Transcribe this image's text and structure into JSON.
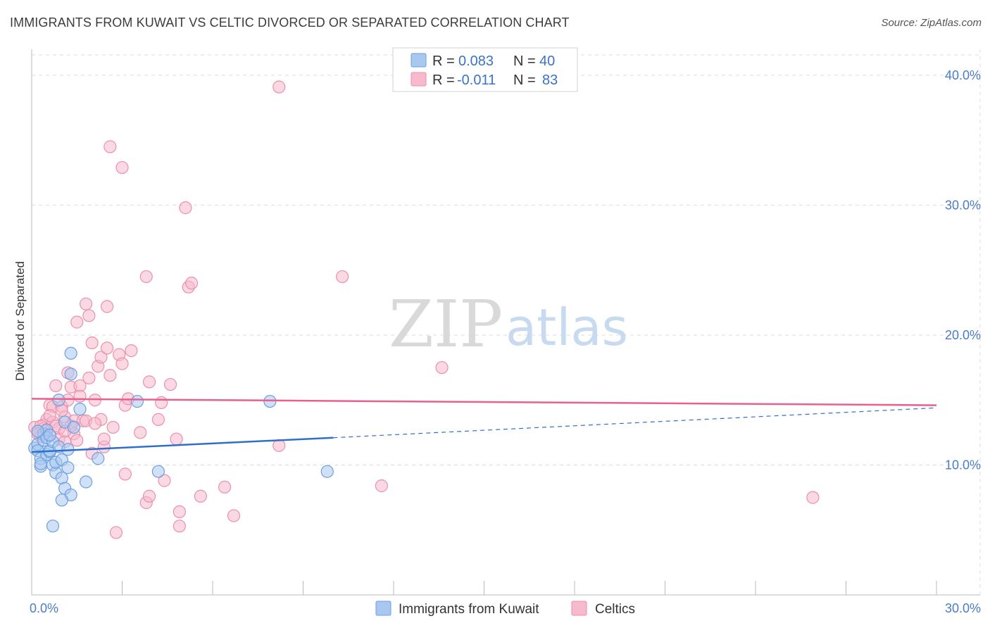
{
  "title": "IMMIGRANTS FROM KUWAIT VS CELTIC DIVORCED OR SEPARATED CORRELATION CHART",
  "source": "Source: ZipAtlas.com",
  "watermark": {
    "zip": "ZIP",
    "atlas": "atlas"
  },
  "colors": {
    "blue_fill": "#a9c8f0",
    "blue_stroke": "#6c9fe0",
    "blue_line": "#2f6fcc",
    "pink_fill": "#f7b9cc",
    "pink_stroke": "#ec8fae",
    "pink_line": "#e8608d",
    "grid": "#dddddd",
    "axis": "#bbbbbb",
    "tick_text": "#4a7cc7"
  },
  "legend": {
    "rows": [
      {
        "r_label": "R =",
        "r_value": "0.083",
        "n_label": "N =",
        "n_value": "40",
        "series": "kuwait"
      },
      {
        "r_label": "R =",
        "r_value": "-0.011",
        "n_label": "N =",
        "n_value": "83",
        "series": "celtics"
      }
    ]
  },
  "chart_data": {
    "type": "scatter",
    "title": "IMMIGRANTS FROM KUWAIT VS CELTIC DIVORCED OR SEPARATED CORRELATION CHART",
    "xlabel": "",
    "ylabel": "Divorced or Separated",
    "xlim": [
      0,
      30
    ],
    "ylim": [
      0,
      42
    ],
    "x_ticks": [
      0,
      3,
      6,
      9,
      12,
      15,
      18,
      21,
      24,
      27,
      30
    ],
    "x_tick_labels": [
      {
        "value": 0,
        "label": "0.0%"
      },
      {
        "value": 30,
        "label": "30.0%"
      }
    ],
    "y_ticks": [
      10,
      20,
      30,
      40
    ],
    "y_tick_labels": [
      "10.0%",
      "20.0%",
      "30.0%",
      "40.0%"
    ],
    "grid": true,
    "series": [
      {
        "name": "Immigrants from Kuwait",
        "key": "kuwait",
        "trend": {
          "x0": 0,
          "y0": 11.0,
          "x1": 10,
          "y1": 12.1,
          "dash_x1": 30,
          "dash_y1": 14.4
        },
        "points": [
          [
            0.1,
            11.3
          ],
          [
            0.2,
            11.6
          ],
          [
            0.2,
            11.1
          ],
          [
            0.3,
            10.5
          ],
          [
            0.3,
            9.9
          ],
          [
            0.3,
            10.1
          ],
          [
            0.4,
            12.4
          ],
          [
            0.4,
            11.9
          ],
          [
            0.5,
            12.7
          ],
          [
            0.5,
            12.1
          ],
          [
            0.5,
            10.8
          ],
          [
            0.6,
            11.0
          ],
          [
            0.6,
            11.1
          ],
          [
            0.7,
            10.0
          ],
          [
            0.7,
            11.8
          ],
          [
            0.8,
            9.4
          ],
          [
            0.8,
            10.2
          ],
          [
            0.9,
            11.4
          ],
          [
            0.9,
            15.0
          ],
          [
            1.0,
            9.0
          ],
          [
            1.0,
            10.4
          ],
          [
            1.1,
            8.2
          ],
          [
            1.1,
            13.3
          ],
          [
            1.2,
            11.2
          ],
          [
            1.2,
            9.8
          ],
          [
            1.3,
            7.7
          ],
          [
            1.3,
            17.0
          ],
          [
            1.3,
            18.6
          ],
          [
            1.4,
            12.9
          ],
          [
            1.6,
            14.3
          ],
          [
            1.8,
            8.7
          ],
          [
            2.2,
            10.5
          ],
          [
            3.5,
            14.9
          ],
          [
            4.2,
            9.5
          ],
          [
            7.9,
            14.9
          ],
          [
            9.8,
            9.5
          ],
          [
            0.7,
            5.3
          ],
          [
            1.0,
            7.3
          ],
          [
            0.2,
            12.6
          ],
          [
            0.6,
            12.3
          ]
        ]
      },
      {
        "name": "Celtics",
        "key": "celtics",
        "trend": {
          "x0": 0,
          "y0": 15.1,
          "x1": 30,
          "y1": 14.6
        },
        "points": [
          [
            0.1,
            12.9
          ],
          [
            0.2,
            12.6
          ],
          [
            0.3,
            12.2
          ],
          [
            0.4,
            13.1
          ],
          [
            0.4,
            12.8
          ],
          [
            0.5,
            13.5
          ],
          [
            0.5,
            12.3
          ],
          [
            0.6,
            14.6
          ],
          [
            0.7,
            13.3
          ],
          [
            0.7,
            14.5
          ],
          [
            0.8,
            16.1
          ],
          [
            0.9,
            12.8
          ],
          [
            0.9,
            12.0
          ],
          [
            1.0,
            14.5
          ],
          [
            1.1,
            11.8
          ],
          [
            1.1,
            13.7
          ],
          [
            1.2,
            17.1
          ],
          [
            1.2,
            15.0
          ],
          [
            1.3,
            16.0
          ],
          [
            1.4,
            13.4
          ],
          [
            1.4,
            12.4
          ],
          [
            1.5,
            11.9
          ],
          [
            1.5,
            21.0
          ],
          [
            1.6,
            16.1
          ],
          [
            1.7,
            13.4
          ],
          [
            1.8,
            22.4
          ],
          [
            1.8,
            13.4
          ],
          [
            1.9,
            21.5
          ],
          [
            1.9,
            16.7
          ],
          [
            2.0,
            10.9
          ],
          [
            2.0,
            19.4
          ],
          [
            2.1,
            15.0
          ],
          [
            2.2,
            17.6
          ],
          [
            2.3,
            18.3
          ],
          [
            2.3,
            13.5
          ],
          [
            2.4,
            11.4
          ],
          [
            2.4,
            12.0
          ],
          [
            2.5,
            19.0
          ],
          [
            2.5,
            22.2
          ],
          [
            2.6,
            34.5
          ],
          [
            2.6,
            16.9
          ],
          [
            2.7,
            12.9
          ],
          [
            2.8,
            4.8
          ],
          [
            2.9,
            18.5
          ],
          [
            3.0,
            32.9
          ],
          [
            3.0,
            17.8
          ],
          [
            3.1,
            14.6
          ],
          [
            3.1,
            9.3
          ],
          [
            3.2,
            15.1
          ],
          [
            3.3,
            18.8
          ],
          [
            3.6,
            12.5
          ],
          [
            3.8,
            24.5
          ],
          [
            3.8,
            7.1
          ],
          [
            3.9,
            7.6
          ],
          [
            3.9,
            16.4
          ],
          [
            4.2,
            13.5
          ],
          [
            4.3,
            14.8
          ],
          [
            4.4,
            8.8
          ],
          [
            4.6,
            16.2
          ],
          [
            4.8,
            12.0
          ],
          [
            4.9,
            5.3
          ],
          [
            4.9,
            6.4
          ],
          [
            5.1,
            29.8
          ],
          [
            5.2,
            23.7
          ],
          [
            5.3,
            24.0
          ],
          [
            5.6,
            7.6
          ],
          [
            6.4,
            8.3
          ],
          [
            6.7,
            6.1
          ],
          [
            8.2,
            11.5
          ],
          [
            8.2,
            39.1
          ],
          [
            10.3,
            24.5
          ],
          [
            11.6,
            8.4
          ],
          [
            13.6,
            17.5
          ],
          [
            25.9,
            7.5
          ],
          [
            0.3,
            13.0
          ],
          [
            0.6,
            13.8
          ],
          [
            1.0,
            14.2
          ],
          [
            1.3,
            13.0
          ],
          [
            1.6,
            15.3
          ],
          [
            2.1,
            13.2
          ],
          [
            0.2,
            12.4
          ],
          [
            0.8,
            13.0
          ],
          [
            1.1,
            12.6
          ]
        ]
      }
    ]
  },
  "bottom_legend": [
    {
      "label": "Immigrants from Kuwait",
      "series": "kuwait"
    },
    {
      "label": "Celtics",
      "series": "celtics"
    }
  ]
}
